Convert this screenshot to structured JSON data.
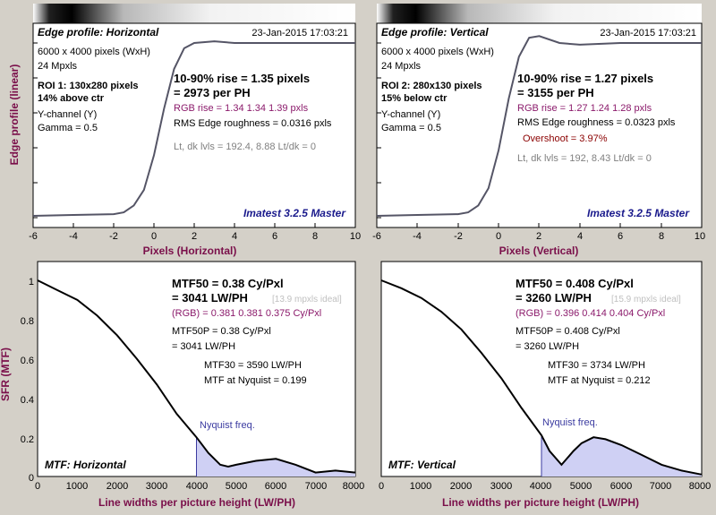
{
  "colors": {
    "background": "#d4d0c8",
    "plot_bg": "#ffffff",
    "curve": "#000000",
    "edge_curve": "#555566",
    "axis_label": "#7a0f4a",
    "rgb_text": "#8b1a6b",
    "stamp_blue": "#1a1a8c",
    "nyquist": "#3b3ba0",
    "fill": "#cfd0f4",
    "muted": "#808080",
    "ideal": "#c0c0c0",
    "overshoot": "#8b0000"
  },
  "left_axis": {
    "edge": "Edge profile (linear)",
    "mtf": "SFR (MTF)"
  },
  "edge_panels": [
    {
      "title": "Edge profile: Horizontal",
      "date": "23-Jan-2015 17:03:21",
      "info": [
        "6000 x 4000 pixels (WxH)",
        "24 Mpxls"
      ],
      "roi": [
        "ROI 1:  130x280 pixels",
        "14% above ctr"
      ],
      "channel": [
        "Y-channel  (Y)",
        "Gamma = 0.5"
      ],
      "rise": [
        "10-90% rise = 1.35 pixels",
        "= 2973 per PH"
      ],
      "rgb": "RGB rise = 1.34  1.34  1.39 pxls",
      "rms": "RMS Edge roughness = 0.0316 pxls",
      "overshoot": "",
      "levels": "Lt, dk lvls = 192.4, 8.88   Lt/dk = 0",
      "stamp": "Imatest 3.2.5 Master",
      "xlabel": "Pixels (Horizontal)"
    },
    {
      "title": "Edge profile: Vertical",
      "date": "23-Jan-2015 17:03:21",
      "info": [
        "6000 x 4000 pixels (WxH)",
        "24 Mpxls"
      ],
      "roi": [
        "ROI 2:  280x130 pixels",
        "15% below ctr"
      ],
      "channel": [
        "Y-channel  (Y)",
        "Gamma = 0.5"
      ],
      "rise": [
        "10-90% rise = 1.27 pixels",
        "= 3155 per PH"
      ],
      "rgb": "RGB rise = 1.27  1.24  1.28 pxls",
      "rms": "RMS Edge roughness = 0.0323 pxls",
      "overshoot": "Overshoot = 3.97%",
      "levels": "Lt, dk lvls = 192, 8.43   Lt/dk = 0",
      "stamp": "Imatest 3.2.5 Master",
      "xlabel": "Pixels (Vertical)"
    }
  ],
  "mtf_panels": [
    {
      "label": "MTF: Horizontal",
      "mtf50": [
        "MTF50 = 0.38 Cy/Pxl",
        "= 3041 LW/PH"
      ],
      "ideal": "[13.9 mpxls ideal]",
      "rgb": "(RGB) = 0.381  0.381  0.375 Cy/Pxl",
      "mtf50p": [
        "MTF50P = 0.38 Cy/Pxl",
        "= 3041 LW/PH"
      ],
      "mtf30": "MTF30 = 3590 LW/PH",
      "nyq_val": "MTF at Nyquist = 0.199",
      "nyquist": "Nyquist freq.",
      "xlabel": "Line widths per picture height (LW/PH)"
    },
    {
      "label": "MTF: Vertical",
      "mtf50": [
        "MTF50 = 0.408 Cy/Pxl",
        "= 3260 LW/PH"
      ],
      "ideal": "[15.9 mpxls ideal]",
      "rgb": "(RGB) = 0.396  0.414  0.404 Cy/Pxl",
      "mtf50p": [
        "MTF50P = 0.408 Cy/Pxl",
        "= 3260 LW/PH"
      ],
      "mtf30": "MTF30 = 3734 LW/PH",
      "nyq_val": "MTF at Nyquist = 0.212",
      "nyquist": "Nyquist freq.",
      "xlabel": "Line widths per picture height (LW/PH)"
    }
  ],
  "chart_data": [
    {
      "type": "line",
      "title": "Edge profile: Horizontal",
      "xlabel": "Pixels (Horizontal)",
      "ylabel": "Edge profile (linear)",
      "xlim": [
        -6,
        10
      ],
      "ylim": [
        0,
        1.2
      ],
      "xticks": [
        -6,
        -4,
        -2,
        0,
        2,
        4,
        6,
        8,
        10
      ],
      "x": [
        -6,
        -4,
        -2,
        -1.5,
        -1,
        -0.5,
        0,
        0.5,
        1,
        1.5,
        2,
        3,
        4,
        6,
        8,
        10
      ],
      "y": [
        0.0,
        0.005,
        0.01,
        0.02,
        0.06,
        0.15,
        0.35,
        0.62,
        0.85,
        0.97,
        1.0,
        1.01,
        1.0,
        1.0,
        1.0,
        1.0
      ]
    },
    {
      "type": "line",
      "title": "Edge profile: Vertical",
      "xlabel": "Pixels (Vertical)",
      "ylabel": "Edge profile (linear)",
      "xlim": [
        -6,
        10
      ],
      "ylim": [
        0,
        1.2
      ],
      "xticks": [
        -6,
        -4,
        -2,
        0,
        2,
        4,
        6,
        8,
        10
      ],
      "x": [
        -6,
        -4,
        -2,
        -1.5,
        -1,
        -0.5,
        0,
        0.5,
        1,
        1.5,
        2,
        3,
        4,
        6,
        8,
        10
      ],
      "y": [
        0.0,
        0.005,
        0.01,
        0.02,
        0.06,
        0.16,
        0.38,
        0.68,
        0.92,
        1.03,
        1.04,
        1.0,
        0.99,
        1.0,
        1.0,
        1.0
      ]
    },
    {
      "type": "line",
      "title": "MTF: Horizontal",
      "xlabel": "Line widths per picture height (LW/PH)",
      "ylabel": "SFR (MTF)",
      "xlim": [
        0,
        8000
      ],
      "ylim": [
        0,
        1.05
      ],
      "xticks": [
        0,
        1000,
        2000,
        3000,
        4000,
        5000,
        6000,
        7000,
        8000
      ],
      "yticks": [
        0,
        0.2,
        0.4,
        0.6,
        0.8,
        1
      ],
      "nyquist_x": 4000,
      "x": [
        0,
        500,
        1000,
        1500,
        2000,
        2500,
        3000,
        3500,
        4000,
        4300,
        4600,
        4800,
        5000,
        5500,
        6000,
        6500,
        7000,
        7500,
        8000
      ],
      "y": [
        1.0,
        0.95,
        0.9,
        0.82,
        0.72,
        0.6,
        0.47,
        0.32,
        0.2,
        0.12,
        0.06,
        0.05,
        0.06,
        0.08,
        0.09,
        0.06,
        0.02,
        0.03,
        0.02
      ]
    },
    {
      "type": "line",
      "title": "MTF: Vertical",
      "xlabel": "Line widths per picture height (LW/PH)",
      "ylabel": "SFR (MTF)",
      "xlim": [
        0,
        8000
      ],
      "ylim": [
        0,
        1.05
      ],
      "xticks": [
        0,
        1000,
        2000,
        3000,
        4000,
        5000,
        6000,
        7000,
        8000
      ],
      "yticks": [
        0,
        0.2,
        0.4,
        0.6,
        0.8,
        1
      ],
      "nyquist_x": 4000,
      "x": [
        0,
        500,
        1000,
        1500,
        2000,
        2500,
        3000,
        3500,
        4000,
        4200,
        4500,
        4800,
        5000,
        5300,
        5600,
        6000,
        6500,
        7000,
        7500,
        8000
      ],
      "y": [
        1.0,
        0.96,
        0.91,
        0.84,
        0.75,
        0.63,
        0.5,
        0.35,
        0.21,
        0.13,
        0.06,
        0.13,
        0.17,
        0.2,
        0.19,
        0.16,
        0.11,
        0.06,
        0.03,
        0.01
      ]
    }
  ]
}
